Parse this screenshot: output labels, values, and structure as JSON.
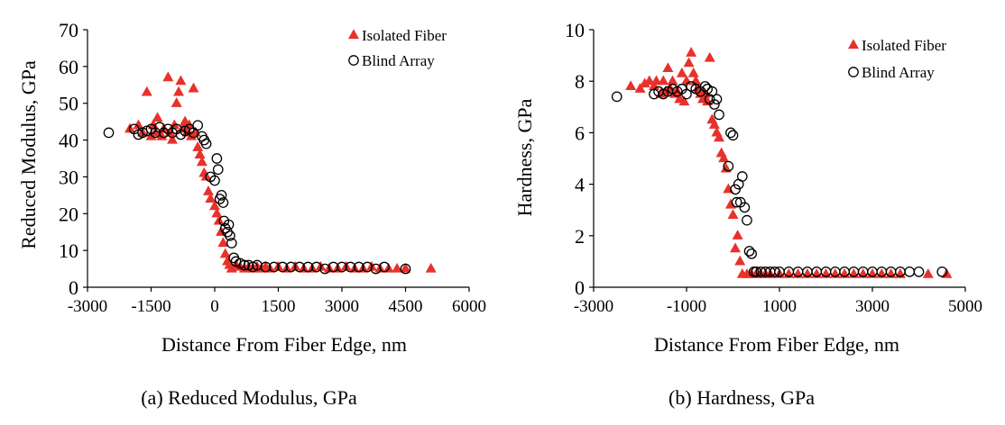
{
  "chart_data": [
    {
      "type": "scatter",
      "title": "",
      "caption": "(a) Reduced Modulus, GPa",
      "xlabel": "Distance From Fiber Edge, nm",
      "ylabel": "Reduced Modulus, GPa",
      "xlim": [
        -3000,
        6000
      ],
      "ylim": [
        0,
        70
      ],
      "xticks": [
        -3000,
        -1500,
        0,
        1500,
        3000,
        4500,
        6000
      ],
      "yticks": [
        0,
        10,
        20,
        30,
        40,
        50,
        60,
        70
      ],
      "grid": false,
      "legend_position": "top-right",
      "series": [
        {
          "name": "Isolated Fiber",
          "marker": "triangle",
          "color": "#e8312a",
          "points": [
            [
              -2000,
              43
            ],
            [
              -1800,
              44
            ],
            [
              -1700,
              42
            ],
            [
              -1600,
              53
            ],
            [
              -1500,
              41
            ],
            [
              -1450,
              44
            ],
            [
              -1400,
              42
            ],
            [
              -1350,
              46
            ],
            [
              -1250,
              41
            ],
            [
              -1200,
              43
            ],
            [
              -1100,
              57
            ],
            [
              -1050,
              42
            ],
            [
              -1000,
              40
            ],
            [
              -950,
              44
            ],
            [
              -900,
              50
            ],
            [
              -850,
              53
            ],
            [
              -800,
              56
            ],
            [
              -750,
              43
            ],
            [
              -700,
              45
            ],
            [
              -650,
              42
            ],
            [
              -600,
              44
            ],
            [
              -550,
              41
            ],
            [
              -500,
              54
            ],
            [
              -450,
              42
            ],
            [
              -400,
              38
            ],
            [
              -350,
              36
            ],
            [
              -300,
              34
            ],
            [
              -250,
              31
            ],
            [
              -200,
              30
            ],
            [
              -150,
              26
            ],
            [
              -100,
              24
            ],
            [
              0,
              22
            ],
            [
              50,
              20
            ],
            [
              100,
              18
            ],
            [
              150,
              15
            ],
            [
              200,
              12
            ],
            [
              250,
              9
            ],
            [
              300,
              7
            ],
            [
              350,
              6
            ],
            [
              400,
              5
            ],
            [
              500,
              6
            ],
            [
              600,
              5.5
            ],
            [
              700,
              5
            ],
            [
              800,
              5.5
            ],
            [
              900,
              5
            ],
            [
              1000,
              5.5
            ],
            [
              1100,
              5
            ],
            [
              1200,
              5.5
            ],
            [
              1300,
              5
            ],
            [
              1500,
              5.5
            ],
            [
              1700,
              5
            ],
            [
              1900,
              5.5
            ],
            [
              2100,
              5
            ],
            [
              2300,
              5
            ],
            [
              2500,
              5.5
            ],
            [
              2700,
              5
            ],
            [
              2900,
              5
            ],
            [
              3100,
              5.5
            ],
            [
              3300,
              5
            ],
            [
              3500,
              5
            ],
            [
              3700,
              5.5
            ],
            [
              3900,
              5
            ],
            [
              4100,
              5
            ],
            [
              4300,
              5
            ],
            [
              4500,
              5
            ],
            [
              5100,
              5
            ]
          ]
        },
        {
          "name": "Blind Array",
          "marker": "circle",
          "color": "#000000",
          "points": [
            [
              -2500,
              42
            ],
            [
              -1900,
              43
            ],
            [
              -1800,
              41.5
            ],
            [
              -1700,
              42
            ],
            [
              -1600,
              42.5
            ],
            [
              -1500,
              43
            ],
            [
              -1400,
              42
            ],
            [
              -1300,
              43.5
            ],
            [
              -1200,
              42
            ],
            [
              -1100,
              43
            ],
            [
              -1000,
              42
            ],
            [
              -900,
              43
            ],
            [
              -800,
              41.5
            ],
            [
              -700,
              42.5
            ],
            [
              -600,
              43
            ],
            [
              -500,
              42
            ],
            [
              -400,
              44
            ],
            [
              -300,
              41
            ],
            [
              -250,
              40
            ],
            [
              -200,
              39
            ],
            [
              -100,
              30
            ],
            [
              0,
              29
            ],
            [
              50,
              35
            ],
            [
              80,
              32
            ],
            [
              120,
              24
            ],
            [
              160,
              25
            ],
            [
              200,
              23
            ],
            [
              220,
              18
            ],
            [
              250,
              16
            ],
            [
              300,
              15
            ],
            [
              330,
              17
            ],
            [
              360,
              14
            ],
            [
              400,
              12
            ],
            [
              450,
              8
            ],
            [
              500,
              7
            ],
            [
              600,
              6.5
            ],
            [
              700,
              6
            ],
            [
              800,
              6
            ],
            [
              900,
              5.5
            ],
            [
              1000,
              6
            ],
            [
              1200,
              5.5
            ],
            [
              1400,
              5.5
            ],
            [
              1600,
              5.5
            ],
            [
              1800,
              5.5
            ],
            [
              2000,
              5.5
            ],
            [
              2200,
              5.5
            ],
            [
              2400,
              5.5
            ],
            [
              2600,
              5
            ],
            [
              2800,
              5.5
            ],
            [
              3000,
              5.5
            ],
            [
              3200,
              5.5
            ],
            [
              3400,
              5.5
            ],
            [
              3600,
              5.5
            ],
            [
              3800,
              5
            ],
            [
              4000,
              5.5
            ],
            [
              4500,
              5
            ]
          ]
        }
      ]
    },
    {
      "type": "scatter",
      "title": "",
      "caption": "(b) Hardness, GPa",
      "xlabel": "Distance From Fiber Edge, nm",
      "ylabel": "Hardness, GPa",
      "xlim": [
        -3000,
        5000
      ],
      "ylim": [
        0,
        10
      ],
      "xticks": [
        -3000,
        -1000,
        1000,
        3000,
        5000
      ],
      "yticks": [
        0,
        2,
        4,
        6,
        8,
        10
      ],
      "grid": false,
      "legend_position": "top-right",
      "series": [
        {
          "name": "Isolated Fiber",
          "marker": "triangle",
          "color": "#e8312a",
          "points": [
            [
              -2200,
              7.8
            ],
            [
              -2000,
              7.7
            ],
            [
              -1900,
              7.9
            ],
            [
              -1800,
              8
            ],
            [
              -1700,
              7.8
            ],
            [
              -1650,
              8
            ],
            [
              -1550,
              7.5
            ],
            [
              -1500,
              8
            ],
            [
              -1450,
              7.6
            ],
            [
              -1400,
              8.5
            ],
            [
              -1350,
              7.7
            ],
            [
              -1300,
              8
            ],
            [
              -1250,
              7.5
            ],
            [
              -1200,
              7.6
            ],
            [
              -1150,
              7.3
            ],
            [
              -1100,
              8.3
            ],
            [
              -1050,
              7.2
            ],
            [
              -1000,
              8
            ],
            [
              -950,
              8.7
            ],
            [
              -900,
              9.1
            ],
            [
              -850,
              8.3
            ],
            [
              -800,
              8
            ],
            [
              -750,
              7.7
            ],
            [
              -700,
              7.5
            ],
            [
              -650,
              7.3
            ],
            [
              -600,
              7.5
            ],
            [
              -550,
              7.2
            ],
            [
              -500,
              8.9
            ],
            [
              -450,
              6.5
            ],
            [
              -400,
              6.3
            ],
            [
              -350,
              6
            ],
            [
              -300,
              5.8
            ],
            [
              -250,
              5.2
            ],
            [
              -200,
              5
            ],
            [
              -150,
              4.6
            ],
            [
              -100,
              3.8
            ],
            [
              -50,
              3.2
            ],
            [
              0,
              2.8
            ],
            [
              50,
              1.5
            ],
            [
              100,
              2
            ],
            [
              150,
              1
            ],
            [
              200,
              0.5
            ],
            [
              300,
              0.5
            ],
            [
              400,
              0.5
            ],
            [
              500,
              0.5
            ],
            [
              600,
              0.5
            ],
            [
              700,
              0.5
            ],
            [
              800,
              0.5
            ],
            [
              1000,
              0.5
            ],
            [
              1200,
              0.5
            ],
            [
              1400,
              0.5
            ],
            [
              1600,
              0.5
            ],
            [
              1800,
              0.5
            ],
            [
              2000,
              0.5
            ],
            [
              2200,
              0.5
            ],
            [
              2400,
              0.5
            ],
            [
              2600,
              0.5
            ],
            [
              2800,
              0.5
            ],
            [
              3000,
              0.5
            ],
            [
              3200,
              0.5
            ],
            [
              3400,
              0.5
            ],
            [
              3600,
              0.5
            ],
            [
              4200,
              0.5
            ],
            [
              4600,
              0.5
            ]
          ]
        },
        {
          "name": "Blind Array",
          "marker": "circle",
          "color": "#000000",
          "points": [
            [
              -2500,
              7.4
            ],
            [
              -1700,
              7.5
            ],
            [
              -1600,
              7.6
            ],
            [
              -1500,
              7.5
            ],
            [
              -1400,
              7.6
            ],
            [
              -1300,
              7.7
            ],
            [
              -1200,
              7.6
            ],
            [
              -1100,
              7.7
            ],
            [
              -1000,
              7.5
            ],
            [
              -900,
              7.8
            ],
            [
              -800,
              7.7
            ],
            [
              -700,
              7.6
            ],
            [
              -600,
              7.8
            ],
            [
              -550,
              7.7
            ],
            [
              -500,
              7.3
            ],
            [
              -450,
              7.6
            ],
            [
              -400,
              7.1
            ],
            [
              -350,
              7.3
            ],
            [
              -300,
              6.7
            ],
            [
              -100,
              4.7
            ],
            [
              -50,
              6
            ],
            [
              0,
              5.9
            ],
            [
              50,
              3.8
            ],
            [
              80,
              3.3
            ],
            [
              120,
              4
            ],
            [
              160,
              3.3
            ],
            [
              200,
              4.3
            ],
            [
              250,
              3.1
            ],
            [
              300,
              2.6
            ],
            [
              350,
              1.4
            ],
            [
              400,
              1.3
            ],
            [
              450,
              0.6
            ],
            [
              500,
              0.6
            ],
            [
              600,
              0.6
            ],
            [
              700,
              0.6
            ],
            [
              800,
              0.6
            ],
            [
              900,
              0.6
            ],
            [
              1000,
              0.6
            ],
            [
              1200,
              0.6
            ],
            [
              1400,
              0.6
            ],
            [
              1600,
              0.6
            ],
            [
              1800,
              0.6
            ],
            [
              2000,
              0.6
            ],
            [
              2200,
              0.6
            ],
            [
              2400,
              0.6
            ],
            [
              2600,
              0.6
            ],
            [
              2800,
              0.6
            ],
            [
              3000,
              0.6
            ],
            [
              3200,
              0.6
            ],
            [
              3400,
              0.6
            ],
            [
              3600,
              0.6
            ],
            [
              3800,
              0.6
            ],
            [
              4000,
              0.6
            ],
            [
              4500,
              0.6
            ]
          ]
        }
      ]
    }
  ]
}
